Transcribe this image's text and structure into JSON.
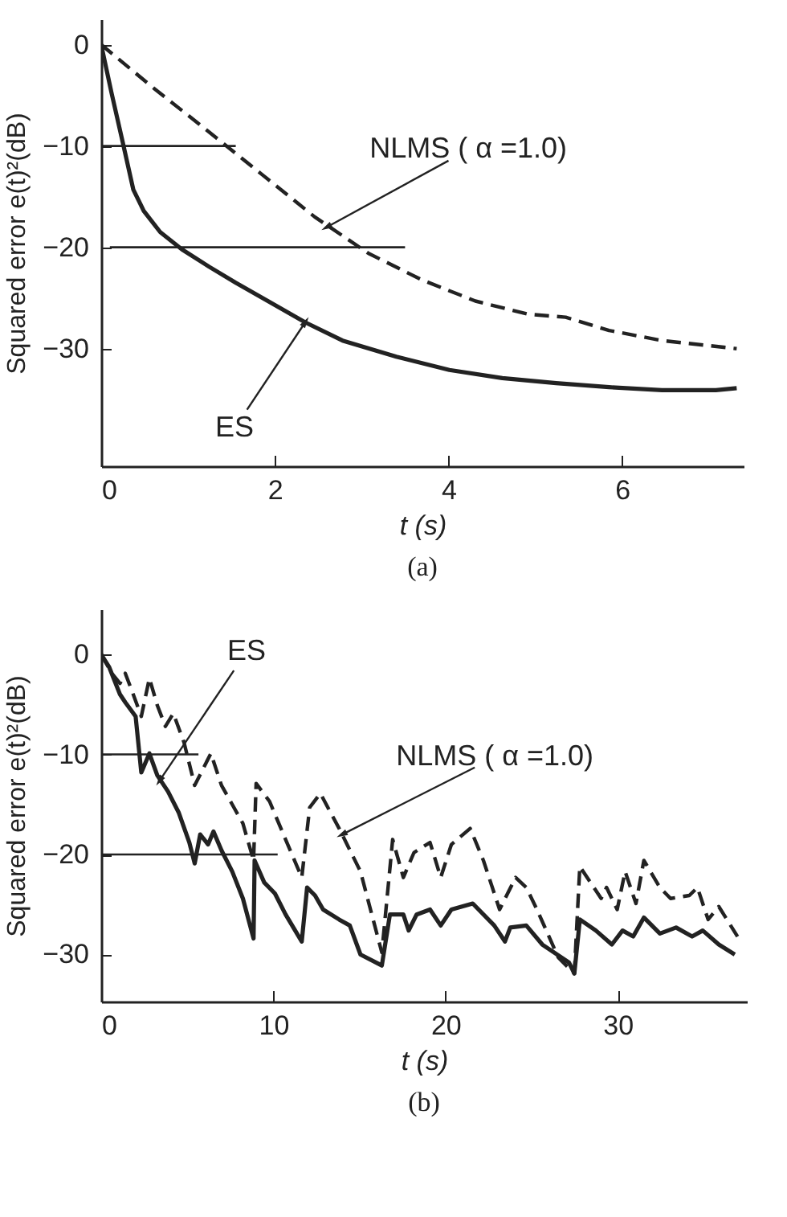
{
  "chart_data": [
    {
      "type": "line",
      "title": "(a)",
      "xlabel": "t  (s)",
      "ylabel": "Squared error e(t)²(dB)",
      "xlim": [
        0,
        7.4
      ],
      "xticks": [
        0,
        2,
        4,
        6
      ],
      "ylim": [
        -41.6,
        2.5
      ],
      "yticks": [
        0,
        -10,
        -20,
        -30
      ],
      "grid": false,
      "series": [
        {
          "color": "#222222",
          "line_style": "solid",
          "x": [
            0,
            0.12,
            0.25,
            0.37,
            0.49,
            0.68,
            0.93,
            1.24,
            1.55,
            1.92,
            2.35,
            2.78,
            3.4,
            4.01,
            4.62,
            5.24,
            5.85,
            6.46,
            7.08,
            7.32
          ],
          "values": [
            0,
            -4.8,
            -9.7,
            -14.3,
            -16.4,
            -18.5,
            -20.2,
            -21.9,
            -23.5,
            -25.3,
            -27.4,
            -29.2,
            -30.8,
            -32.1,
            -32.9,
            -33.4,
            -33.8,
            -34.1,
            -34.1,
            -33.9
          ]
        },
        {
          "color": "#222222",
          "line_style": "dashed",
          "x": [
            0,
            0.62,
            1.24,
            1.85,
            2.46,
            3.08,
            3.69,
            4.31,
            4.92,
            5.35,
            5.85,
            6.46,
            7.32
          ],
          "values": [
            0,
            -4.4,
            -8.6,
            -12.8,
            -17.0,
            -20.6,
            -23.2,
            -25.3,
            -26.6,
            -26.9,
            -28.2,
            -29.2,
            -30.0
          ]
        },
        {
          "color": "#222222",
          "line_style": "solid",
          "x": [
            0,
            1.55
          ],
          "values": [
            -10,
            -10
          ]
        },
        {
          "color": "#222222",
          "line_style": "solid",
          "x": [
            0.1,
            3.5
          ],
          "values": [
            -20,
            -20
          ]
        }
      ],
      "annotations": [
        {
          "text": "NLMS ( α =1.0)",
          "x": 2.6,
          "y": -18
        },
        {
          "text": "ES",
          "x": 2.35,
          "y": -27.4
        }
      ]
    },
    {
      "type": "line",
      "title": "(b)",
      "xlabel": "t  (s)",
      "ylabel": "Squared error e(t)²(dB)",
      "xlim": [
        0,
        37.5
      ],
      "xticks": [
        0,
        10,
        20,
        30
      ],
      "ylim": [
        -34.7,
        4.5
      ],
      "yticks": [
        0,
        -10,
        -20,
        -30
      ],
      "grid": false,
      "series": [
        {
          "color": "#222222",
          "line_style": "solid",
          "x": [
            0,
            0.47,
            1.09,
            1.4,
            2.0,
            2.33,
            2.8,
            3.26,
            3.88,
            4.5,
            5.12,
            5.43,
            5.75,
            6.21,
            6.52,
            6.99,
            7.61,
            8.23,
            8.85,
            8.91,
            9.47,
            10.09,
            10.71,
            11.65,
            11.96,
            12.42,
            12.89,
            13.82,
            14.44,
            15.06,
            16.3,
            16.77,
            17.55,
            17.86,
            18.32,
            19.1,
            19.72,
            20.34,
            21.58,
            22.83,
            23.45,
            23.76,
            24.69,
            25.62,
            27.17,
            27.48,
            27.8,
            28.73,
            29.66,
            30.28,
            30.9,
            31.52,
            32.45,
            33.39,
            34.32,
            34.94,
            35.87,
            36.8
          ],
          "values": [
            0,
            -1.3,
            -4.0,
            -4.8,
            -6.2,
            -11.8,
            -9.9,
            -12.1,
            -13.7,
            -15.8,
            -18.8,
            -20.9,
            -18.0,
            -19.0,
            -17.7,
            -19.6,
            -21.7,
            -24.4,
            -28.4,
            -20.6,
            -22.8,
            -23.9,
            -26.0,
            -28.7,
            -23.3,
            -24.1,
            -25.5,
            -26.5,
            -27.1,
            -30.0,
            -31.1,
            -26.0,
            -26.0,
            -27.6,
            -26.0,
            -25.5,
            -27.1,
            -25.5,
            -24.9,
            -27.1,
            -28.7,
            -27.3,
            -27.1,
            -29.0,
            -30.8,
            -31.9,
            -26.5,
            -27.6,
            -29.0,
            -27.6,
            -28.2,
            -26.3,
            -27.9,
            -27.3,
            -28.2,
            -27.6,
            -29.0,
            -30.0
          ]
        },
        {
          "color": "#222222",
          "line_style": "dashed",
          "x": [
            0,
            0.62,
            1.09,
            1.4,
            1.86,
            2.33,
            2.8,
            3.26,
            3.73,
            4.19,
            4.81,
            5.43,
            5.9,
            6.37,
            6.99,
            7.61,
            8.23,
            8.85,
            9.0,
            9.78,
            10.71,
            11.65,
            12.11,
            12.73,
            13.82,
            15.06,
            16.3,
            16.93,
            17.55,
            18.17,
            19.1,
            19.72,
            20.34,
            21.43,
            22.2,
            23.14,
            24.07,
            24.69,
            25.31,
            26.55,
            27.48,
            27.8,
            29.04,
            29.35,
            29.97,
            30.43,
            31.06,
            31.52,
            32.45,
            33.07,
            34.16,
            34.63,
            35.25,
            35.87,
            36.96
          ],
          "values": [
            0,
            -1.9,
            -2.9,
            -1.9,
            -4.0,
            -6.2,
            -2.4,
            -5.1,
            -7.2,
            -5.9,
            -8.8,
            -13.1,
            -11.5,
            -9.9,
            -13.1,
            -15.0,
            -16.9,
            -20.6,
            -12.9,
            -14.7,
            -18.5,
            -22.3,
            -15.3,
            -13.9,
            -17.4,
            -21.7,
            -29.8,
            -18.5,
            -22.3,
            -19.8,
            -18.8,
            -22.3,
            -19.0,
            -17.4,
            -20.6,
            -25.5,
            -22.3,
            -23.3,
            -25.5,
            -30.3,
            -31.9,
            -21.2,
            -24.4,
            -23.3,
            -25.5,
            -21.7,
            -24.9,
            -20.6,
            -23.3,
            -24.4,
            -24.1,
            -23.3,
            -26.5,
            -25.2,
            -28.2
          ]
        },
        {
          "color": "#222222",
          "line_style": "solid",
          "x": [
            0,
            5.65
          ],
          "values": [
            -10,
            -10
          ]
        },
        {
          "color": "#222222",
          "line_style": "solid",
          "x": [
            0,
            10.25
          ],
          "values": [
            -20,
            -20
          ]
        }
      ],
      "annotations": [
        {
          "text": "ES",
          "x": 3.4,
          "y": -12.6
        },
        {
          "text": "NLMS  ( α =1.0)",
          "x": 14,
          "y": -18
        }
      ]
    }
  ]
}
